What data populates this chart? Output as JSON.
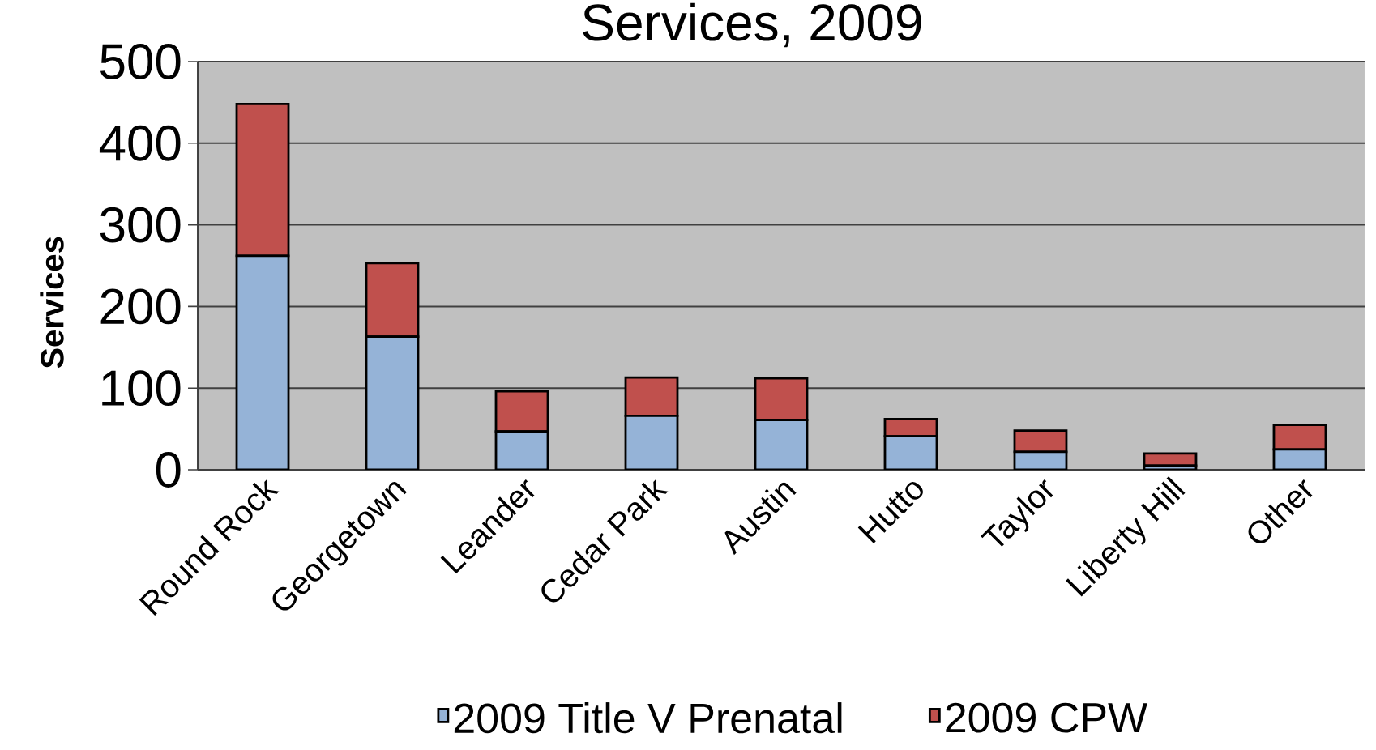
{
  "chart_data": {
    "type": "bar",
    "title": "Services, 2009",
    "ylabel": "Services",
    "categories": [
      "Round Rock",
      "Georgetown",
      "Leander",
      "Cedar Park",
      "Austin",
      "Hutto",
      "Taylor",
      "Liberty Hill",
      "Other"
    ],
    "stacked": true,
    "series": [
      {
        "name": "2009 Title V Prenatal",
        "color": "#95b3d7",
        "values": [
          262,
          163,
          47,
          66,
          61,
          41,
          22,
          5,
          25
        ]
      },
      {
        "name": "2009 CPW",
        "color": "#c0504d",
        "values": [
          186,
          90,
          49,
          47,
          51,
          21,
          26,
          15,
          30
        ]
      }
    ],
    "ylim": [
      0,
      500
    ],
    "yticks": [
      0,
      100,
      200,
      300,
      400,
      500
    ],
    "grid": "y",
    "legend": "bottom"
  }
}
